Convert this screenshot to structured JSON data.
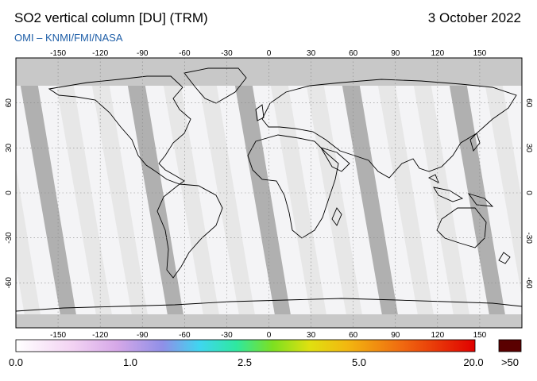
{
  "header": {
    "title": "SO2 vertical column [DU] (TRM)",
    "date": "3 October 2022",
    "credit": "OMI  –  KNMI/FMI/NASA"
  },
  "map": {
    "lon_ticks": [
      "-150",
      "-120",
      "-90",
      "-60",
      "-30",
      "0",
      "30",
      "60",
      "90",
      "120",
      "150"
    ],
    "lat_ticks": [
      "60",
      "30",
      "0",
      "-30",
      "-60"
    ],
    "colors": {
      "no_data": "#c8c8c8",
      "swath_gap": "#e6e6e6",
      "land_shade": "#a8a8a8",
      "background": "#f4f4f6",
      "coastline": "#000000"
    }
  },
  "colorbar": {
    "labels": [
      "0.0",
      "1.0",
      "2.5",
      "5.0",
      "20.0"
    ],
    "overflow_label": ">50",
    "overflow_color": "#5a0000"
  }
}
